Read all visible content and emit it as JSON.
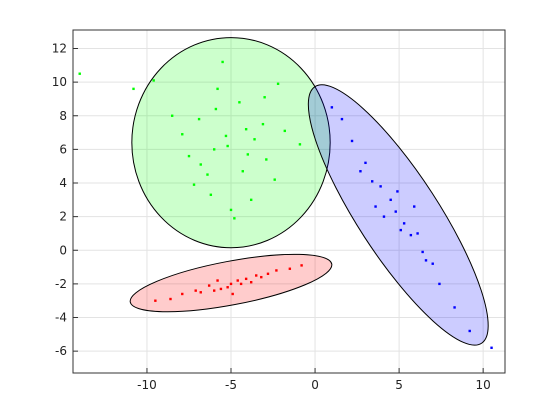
{
  "chart_data": {
    "type": "scatter",
    "xlim": [
      -14.4,
      11.3
    ],
    "ylim": [
      -7.3,
      13.1
    ],
    "xticks": [
      -10,
      -5,
      0,
      5,
      10
    ],
    "yticks": [
      -6,
      -4,
      -2,
      0,
      2,
      4,
      6,
      8,
      10,
      12
    ],
    "grid": true,
    "series": [
      {
        "color": "#00ff00",
        "x": [
          -5.2,
          -3.1,
          -6.8,
          -4.5,
          -7.9,
          -2.4,
          -5.8,
          -4.0,
          -6.2,
          -3.6,
          -8.5,
          -1.8,
          -5.0,
          -6.9,
          -4.3,
          -3.0,
          -7.2,
          -5.5,
          -2.9,
          -6.0,
          -4.8,
          -9.6,
          -0.9,
          -5.9,
          -3.8,
          -7.5,
          -4.1,
          -6.4,
          -2.2,
          -5.3,
          -14.0,
          -10.8
        ],
        "values": [
          6.2,
          7.5,
          5.1,
          8.8,
          6.9,
          4.2,
          9.6,
          5.7,
          3.3,
          6.6,
          8.0,
          7.1,
          2.4,
          7.8,
          4.7,
          9.1,
          3.9,
          11.2,
          5.4,
          6.0,
          1.9,
          10.1,
          6.3,
          8.4,
          3.0,
          5.6,
          7.2,
          4.5,
          9.9,
          6.8,
          10.5,
          9.6
        ],
        "ellipse": {
          "center": [
            -5.0,
            6.4
          ],
          "radii": [
            5.9,
            6.25
          ],
          "angle": 0
        }
      },
      {
        "color": "#ff0000",
        "x": [
          -5.0,
          -3.2,
          -6.8,
          -4.1,
          -7.9,
          -2.3,
          -5.6,
          -3.8,
          -6.3,
          -4.6,
          -8.6,
          -1.5,
          -5.2,
          -7.1,
          -2.8,
          -4.4,
          -6.0,
          -3.5,
          -9.5,
          -0.8,
          -5.8,
          -4.9
        ],
        "values": [
          -2.0,
          -1.6,
          -2.5,
          -1.7,
          -2.6,
          -1.2,
          -2.3,
          -1.9,
          -2.1,
          -1.8,
          -2.9,
          -1.1,
          -2.2,
          -2.4,
          -1.4,
          -2.0,
          -2.4,
          -1.5,
          -3.0,
          -0.9,
          -1.8,
          -2.6
        ],
        "ellipse": {
          "center": [
            -5.0,
            -1.95
          ],
          "radii": [
            6.1,
            1.3
          ],
          "angle": 10.7
        }
      },
      {
        "color": "#0000ff",
        "x": [
          4.8,
          3.9,
          5.7,
          3.0,
          6.6,
          2.2,
          7.4,
          4.5,
          5.3,
          3.4,
          6.1,
          1.6,
          8.3,
          4.1,
          5.9,
          2.7,
          7.0,
          4.9,
          3.6,
          6.4,
          9.2,
          1.0,
          5.1,
          10.5
        ],
        "values": [
          2.3,
          3.8,
          0.9,
          5.2,
          -0.6,
          6.5,
          -2.0,
          3.0,
          1.6,
          4.1,
          1.0,
          7.8,
          -3.4,
          2.0,
          2.6,
          4.7,
          -0.8,
          3.5,
          2.6,
          -0.1,
          -4.8,
          8.5,
          1.2,
          -5.8
        ],
        "ellipse": {
          "center": [
            4.95,
            2.1
          ],
          "radii": [
            9.1,
            2.4
          ],
          "angle": -57
        }
      }
    ]
  }
}
